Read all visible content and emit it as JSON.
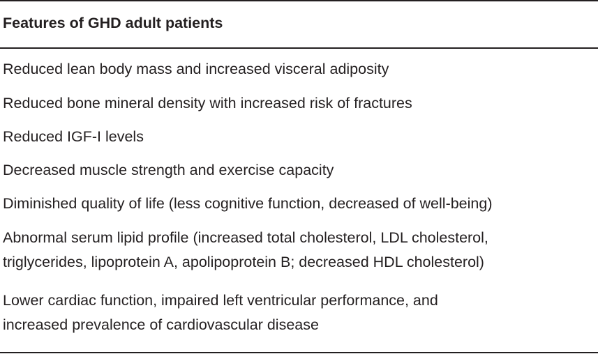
{
  "table": {
    "header": "Features of GHD adult patients",
    "rows": [
      {
        "lines": [
          "Reduced lean body mass and increased visceral adiposity"
        ]
      },
      {
        "lines": [
          "Reduced bone mineral density with increased risk of fractures"
        ]
      },
      {
        "lines": [
          "Reduced IGF-I levels"
        ]
      },
      {
        "lines": [
          "Decreased muscle strength and exercise capacity"
        ]
      },
      {
        "lines": [
          "Diminished quality of life (less cognitive function, decreased of well-being)"
        ]
      },
      {
        "lines": [
          "Abnormal serum lipid profile (increased total cholesterol, LDL cholesterol,",
          "triglycerides, lipoprotein A, apolipoprotein B; decreased HDL cholesterol)"
        ]
      },
      {
        "lines": [
          "Lower cardiac function, impaired left ventricular performance, and",
          "increased prevalence of cardiovascular disease"
        ]
      }
    ]
  }
}
